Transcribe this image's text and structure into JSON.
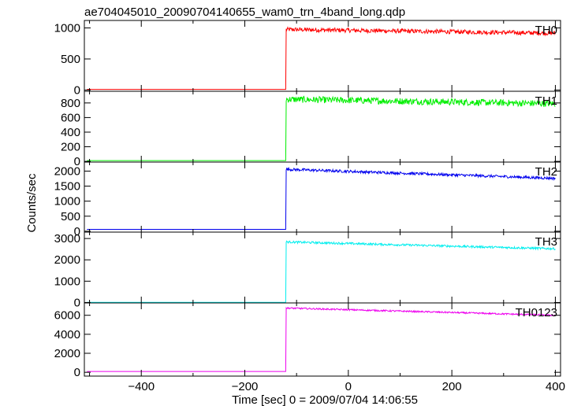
{
  "title": "ae704045010_20090704140655_wam0_trn_4band_long.qdp",
  "chart_data": {
    "type": "line",
    "title": "ae704045010_20090704140655_wam0_trn_4band_long.qdp",
    "xlabel": "Time [sec] 0 = 2009/07/04 14:06:55",
    "ylabel": "Counts/sec",
    "xlim": [
      -510,
      410
    ],
    "x_ticks": [
      -400,
      -200,
      0,
      200,
      400
    ],
    "x_tick_labels": [
      "−400",
      "−200",
      "0",
      "200",
      "400"
    ],
    "grid": false,
    "panels": [
      {
        "name": "TH0",
        "color": "#ff0000",
        "ylim": [
          -20,
          1120
        ],
        "y_ticks": [
          0,
          500,
          1000
        ],
        "pre_level": 10,
        "onset_time": -120,
        "post_start": 975,
        "post_end": 915,
        "noise": 35
      },
      {
        "name": "TH1",
        "color": "#00ee00",
        "ylim": [
          -10,
          960
        ],
        "y_ticks": [
          0,
          200,
          400,
          600,
          800
        ],
        "pre_level": 10,
        "onset_time": -120,
        "post_start": 850,
        "post_end": 790,
        "noise": 45
      },
      {
        "name": "TH2",
        "color": "#0000ee",
        "ylim": [
          -30,
          2300
        ],
        "y_ticks": [
          0,
          500,
          1000,
          1500,
          2000
        ],
        "pre_level": 60,
        "onset_time": -120,
        "post_start": 2060,
        "post_end": 1760,
        "noise": 45
      },
      {
        "name": "TH3",
        "color": "#00eeee",
        "ylim": [
          -20,
          3300
        ],
        "y_ticks": [
          0,
          1000,
          2000,
          3000
        ],
        "pre_level": 10,
        "onset_time": -120,
        "post_start": 2840,
        "post_end": 2520,
        "noise": 50
      },
      {
        "name": "TH0123",
        "color": "#ee00ee",
        "ylim": [
          -400,
          7300
        ],
        "y_ticks": [
          0,
          2000,
          4000,
          6000
        ],
        "pre_level": 90,
        "onset_time": -120,
        "post_start": 6760,
        "post_end": 6000,
        "noise": 80
      }
    ]
  }
}
